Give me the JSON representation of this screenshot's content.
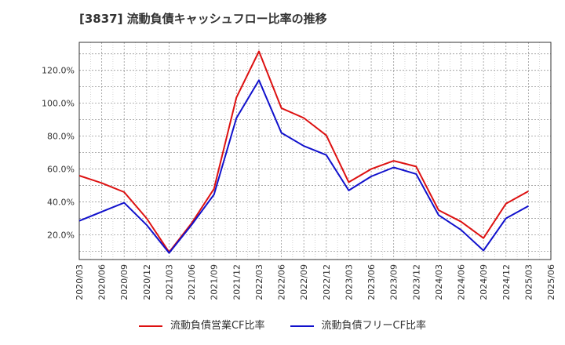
{
  "title": "[3837]  流動負債キャッシュフロー比率の推移",
  "chart_data": {
    "type": "line",
    "x": [
      "2020/03",
      "2020/06",
      "2020/09",
      "2020/12",
      "2021/03",
      "2021/06",
      "2021/09",
      "2021/12",
      "2022/03",
      "2022/06",
      "2022/09",
      "2022/12",
      "2023/03",
      "2023/06",
      "2023/09",
      "2023/12",
      "2024/03",
      "2024/06",
      "2024/09",
      "2024/12",
      "2025/03",
      "2025/06"
    ],
    "yticks": [
      "20.0%",
      "40.0%",
      "60.0%",
      "80.0%",
      "100.0%",
      "120.0%"
    ],
    "ylim": [
      5,
      137
    ],
    "grid": true,
    "legend_position": "bottom",
    "series": [
      {
        "name": "流動負債営業CF比率",
        "color": "#dd1111",
        "values": [
          56,
          51.5,
          46,
          30,
          9.5,
          27,
          48,
          103.5,
          131.5,
          97,
          91,
          80.5,
          52,
          60,
          65,
          61.5,
          35,
          28,
          18,
          39,
          46.5,
          null
        ]
      },
      {
        "name": "流動負債フリーCF比率",
        "color": "#1111cc",
        "values": [
          28.5,
          34,
          39.5,
          26,
          9,
          26,
          44.5,
          91,
          114,
          82,
          74,
          68.5,
          47,
          55.5,
          61,
          57,
          32,
          23,
          10.5,
          30,
          37.5,
          null
        ]
      }
    ]
  }
}
